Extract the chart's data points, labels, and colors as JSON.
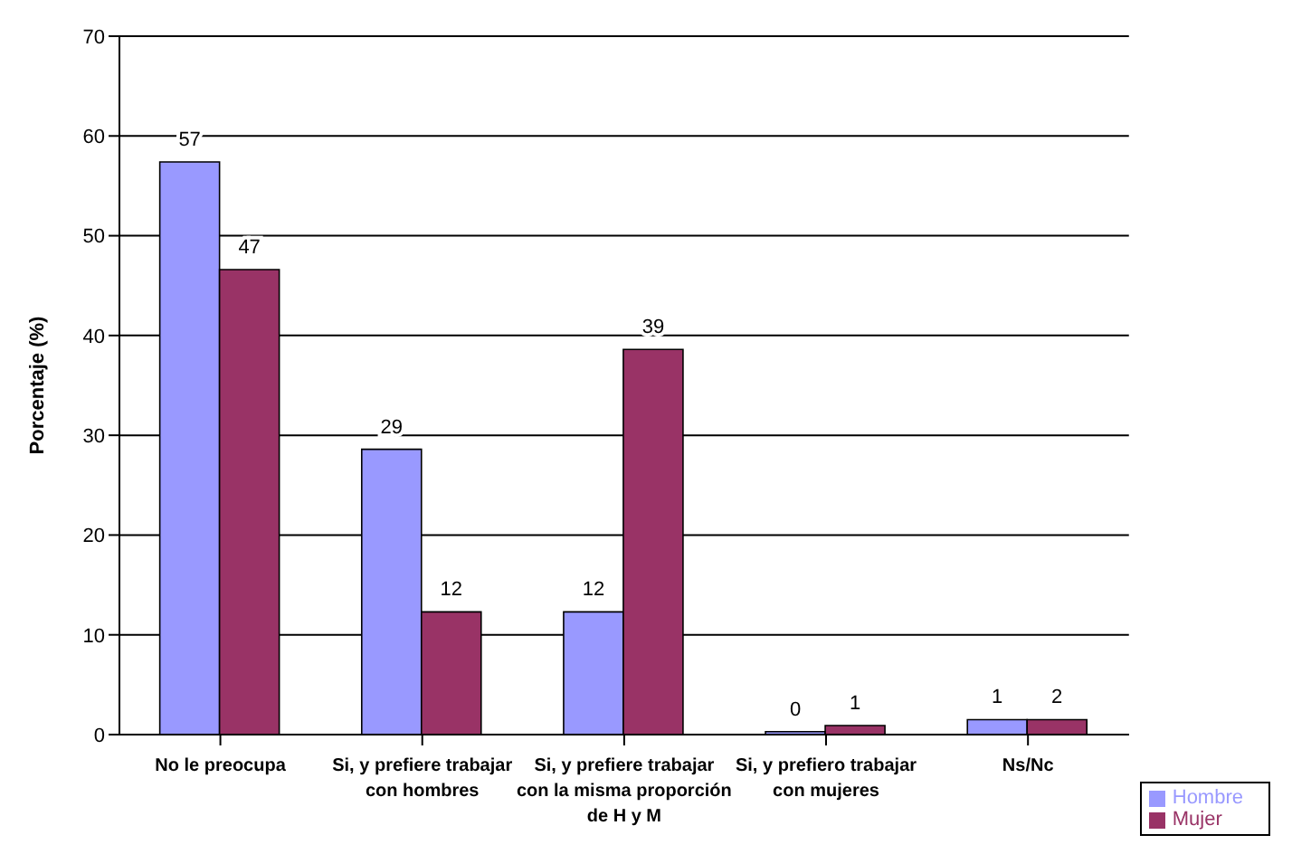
{
  "chart_data": {
    "type": "bar",
    "ylabel": "Porcentaje (%)",
    "categories": [
      "No le preocupa",
      "Si, y prefiere trabajar con hombres",
      "Si, y prefiere trabajar con la misma proporción de H y M",
      "Si, y prefiero trabajar con mujeres",
      "Ns/Nc"
    ],
    "series": [
      {
        "name": "Hombre",
        "color": "#9999ff",
        "values": [
          57.4,
          28.6,
          12.3,
          0.3,
          1.5
        ],
        "value_labels": [
          "57",
          "29",
          "12",
          "0",
          "1"
        ]
      },
      {
        "name": "Mujer",
        "color": "#993366",
        "values": [
          46.6,
          12.3,
          38.6,
          0.9,
          1.5
        ],
        "value_labels": [
          "47",
          "12",
          "39",
          "1",
          "2"
        ]
      }
    ],
    "ylim": [
      0,
      70
    ],
    "yticks": [
      0,
      10,
      20,
      30,
      40,
      50,
      60,
      70
    ],
    "grid": "y",
    "legend": "bottom right"
  }
}
